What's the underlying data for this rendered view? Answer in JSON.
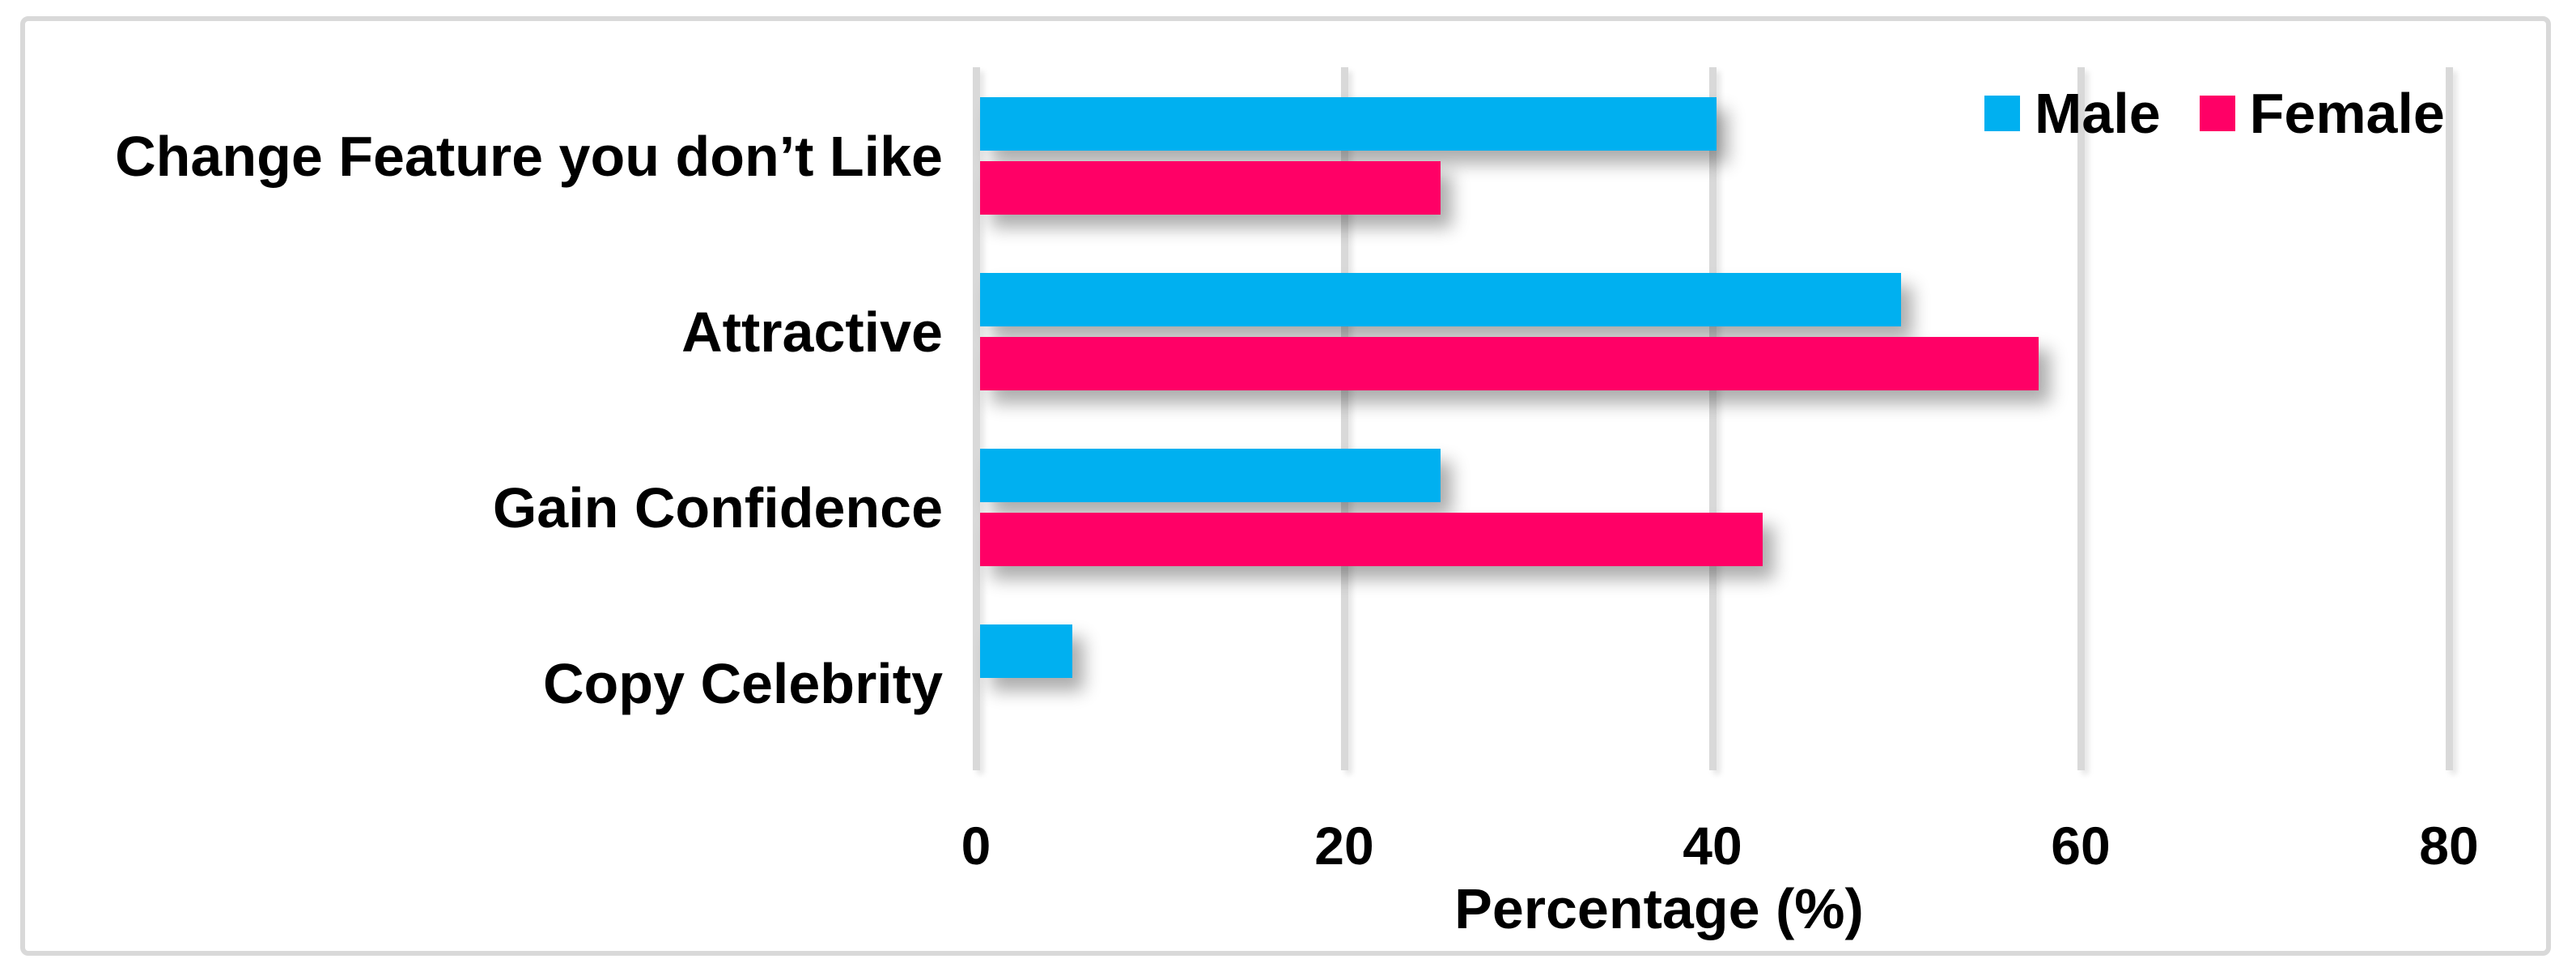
{
  "chart_data": {
    "type": "bar",
    "orientation": "horizontal",
    "title": "",
    "categories": [
      "Change Feature you don’t Like",
      "Attractive",
      "Gain Confidence",
      "Copy Celebrity"
    ],
    "series": [
      {
        "name": "Male",
        "color": "#00B0F0",
        "values": [
          40,
          50,
          25,
          5
        ]
      },
      {
        "name": "Female",
        "color": "#FF0066",
        "values": [
          25,
          57.5,
          42.5,
          0
        ]
      }
    ],
    "xlabel": "Percentage (%)",
    "xlim": [
      0,
      80
    ],
    "xticks": [
      0,
      20,
      40,
      60,
      80
    ],
    "grid": true,
    "legend_position": "top-right"
  },
  "styles": {
    "grid_color": "#D9D9D9",
    "border_color": "#D9D9D9",
    "text_color": "#000000",
    "background": "#FFFFFF"
  }
}
